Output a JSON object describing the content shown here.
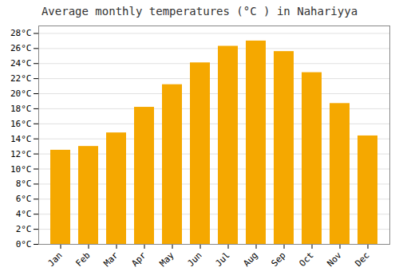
{
  "chart_data": {
    "type": "bar",
    "title": "Average monthly temperatures (°C ) in Nahariyya",
    "categories": [
      "Jan",
      "Feb",
      "Mar",
      "Apr",
      "May",
      "Jun",
      "Jul",
      "Aug",
      "Sep",
      "Oct",
      "Nov",
      "Dec"
    ],
    "values": [
      12.5,
      13.0,
      14.8,
      18.2,
      21.2,
      24.1,
      26.3,
      27.0,
      25.6,
      22.8,
      18.7,
      14.4
    ],
    "color": "#F5A800",
    "ylim": [
      0,
      29
    ],
    "yticks": [
      {
        "value": 0,
        "label": "0°C"
      },
      {
        "value": 2,
        "label": "2°C"
      },
      {
        "value": 4,
        "label": "4°C"
      },
      {
        "value": 6,
        "label": "6°C"
      },
      {
        "value": 8,
        "label": "8°C"
      },
      {
        "value": 10,
        "label": "10°C"
      },
      {
        "value": 12,
        "label": "12°C"
      },
      {
        "value": 14,
        "label": "14°C"
      },
      {
        "value": 16,
        "label": "16°C"
      },
      {
        "value": 18,
        "label": "18°C"
      },
      {
        "value": 20,
        "label": "20°C"
      },
      {
        "value": 22,
        "label": "22°C"
      },
      {
        "value": 24,
        "label": "24°C"
      },
      {
        "value": 26,
        "label": "26°C"
      },
      {
        "value": 28,
        "label": "28°C"
      }
    ],
    "grid": true
  }
}
